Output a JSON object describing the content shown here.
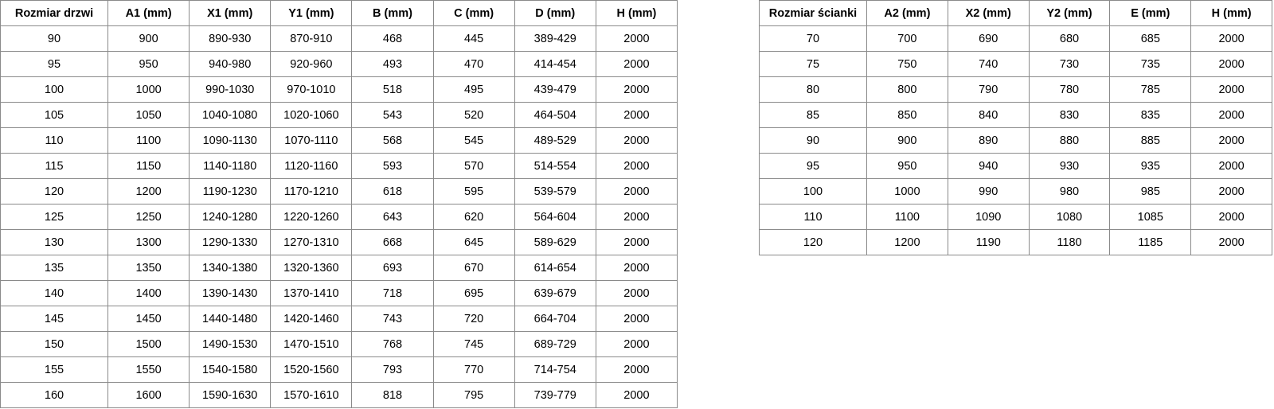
{
  "doors_table": {
    "headers": [
      "Rozmiar drzwi",
      "A1 (mm)",
      "X1 (mm)",
      "Y1 (mm)",
      "B (mm)",
      "C (mm)",
      "D (mm)",
      "H (mm)"
    ],
    "rows": [
      [
        "90",
        "900",
        "890-930",
        "870-910",
        "468",
        "445",
        "389-429",
        "2000"
      ],
      [
        "95",
        "950",
        "940-980",
        "920-960",
        "493",
        "470",
        "414-454",
        "2000"
      ],
      [
        "100",
        "1000",
        "990-1030",
        "970-1010",
        "518",
        "495",
        "439-479",
        "2000"
      ],
      [
        "105",
        "1050",
        "1040-1080",
        "1020-1060",
        "543",
        "520",
        "464-504",
        "2000"
      ],
      [
        "110",
        "1100",
        "1090-1130",
        "1070-1110",
        "568",
        "545",
        "489-529",
        "2000"
      ],
      [
        "115",
        "1150",
        "1140-1180",
        "1120-1160",
        "593",
        "570",
        "514-554",
        "2000"
      ],
      [
        "120",
        "1200",
        "1190-1230",
        "1170-1210",
        "618",
        "595",
        "539-579",
        "2000"
      ],
      [
        "125",
        "1250",
        "1240-1280",
        "1220-1260",
        "643",
        "620",
        "564-604",
        "2000"
      ],
      [
        "130",
        "1300",
        "1290-1330",
        "1270-1310",
        "668",
        "645",
        "589-629",
        "2000"
      ],
      [
        "135",
        "1350",
        "1340-1380",
        "1320-1360",
        "693",
        "670",
        "614-654",
        "2000"
      ],
      [
        "140",
        "1400",
        "1390-1430",
        "1370-1410",
        "718",
        "695",
        "639-679",
        "2000"
      ],
      [
        "145",
        "1450",
        "1440-1480",
        "1420-1460",
        "743",
        "720",
        "664-704",
        "2000"
      ],
      [
        "150",
        "1500",
        "1490-1530",
        "1470-1510",
        "768",
        "745",
        "689-729",
        "2000"
      ],
      [
        "155",
        "1550",
        "1540-1580",
        "1520-1560",
        "793",
        "770",
        "714-754",
        "2000"
      ],
      [
        "160",
        "1600",
        "1590-1630",
        "1570-1610",
        "818",
        "795",
        "739-779",
        "2000"
      ]
    ]
  },
  "wall_table": {
    "headers": [
      "Rozmiar ścianki",
      "A2 (mm)",
      "X2 (mm)",
      "Y2 (mm)",
      "E (mm)",
      "H (mm)"
    ],
    "rows": [
      [
        "70",
        "700",
        "690",
        "680",
        "685",
        "2000"
      ],
      [
        "75",
        "750",
        "740",
        "730",
        "735",
        "2000"
      ],
      [
        "80",
        "800",
        "790",
        "780",
        "785",
        "2000"
      ],
      [
        "85",
        "850",
        "840",
        "830",
        "835",
        "2000"
      ],
      [
        "90",
        "900",
        "890",
        "880",
        "885",
        "2000"
      ],
      [
        "95",
        "950",
        "940",
        "930",
        "935",
        "2000"
      ],
      [
        "100",
        "1000",
        "990",
        "980",
        "985",
        "2000"
      ],
      [
        "110",
        "1100",
        "1090",
        "1080",
        "1085",
        "2000"
      ],
      [
        "120",
        "1200",
        "1190",
        "1180",
        "1185",
        "2000"
      ]
    ]
  }
}
